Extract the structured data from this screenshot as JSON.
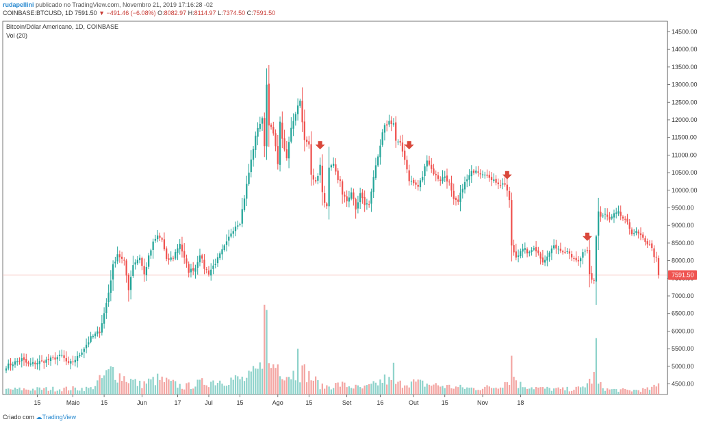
{
  "header": {
    "user": "rudapellini",
    "published": "publicado no TradingView.com, Novembro 21, 2019 17:16:28 -02",
    "symbol": "COINBASE:BTCUSD, 1D",
    "last": "7591.50",
    "change": "▼ −491.46 (−6.08%)",
    "o_label": "O:",
    "o_value": "8082.97",
    "h_label": "H:",
    "h_value": "8114.97",
    "l_label": "L:",
    "l_value": "7374.50",
    "c_label": "C:",
    "c_value": "7591.50"
  },
  "legend": {
    "series_title": "Bitcoin/Dólar Americano, 1D, COINBASE",
    "volume_title": "Vol (20)"
  },
  "footer": {
    "created_by": "Criado com",
    "brand": "TradingView",
    "logo_icon": "tradingview-cloud-icon"
  },
  "colors": {
    "up": "#26a69a",
    "down": "#ef5350",
    "up_volume": "#8fd3cb",
    "down_volume": "#f3a6a3",
    "arrow": "#d9483b",
    "price_line": "#f6c0bd"
  },
  "chart_data": {
    "type": "candlestick",
    "title": "Bitcoin/Dólar Americano, 1D, COINBASE",
    "y_ticks": [
      "14500.00",
      "14000.00",
      "13500.00",
      "13000.00",
      "12500.00",
      "12000.00",
      "11500.00",
      "11000.00",
      "10500.00",
      "10000.00",
      "9500.00",
      "9000.00",
      "8500.00",
      "8000.00",
      "7500.00",
      "7000.00",
      "6500.00",
      "6000.00",
      "5500.00",
      "5000.00",
      "4500.00"
    ],
    "y_range": [
      4200,
      14800
    ],
    "x_ticks": [
      {
        "label": "15",
        "date": "2019-04-15"
      },
      {
        "label": "Maio",
        "date": "2019-05-01"
      },
      {
        "label": "15",
        "date": "2019-05-15"
      },
      {
        "label": "Jun",
        "date": "2019-06-01"
      },
      {
        "label": "17",
        "date": "2019-06-17"
      },
      {
        "label": "Jul",
        "date": "2019-07-01"
      },
      {
        "label": "15",
        "date": "2019-07-15"
      },
      {
        "label": "Ago",
        "date": "2019-08-01"
      },
      {
        "label": "15",
        "date": "2019-08-15"
      },
      {
        "label": "Set",
        "date": "2019-09-01"
      },
      {
        "label": "16",
        "date": "2019-09-16"
      },
      {
        "label": "Out",
        "date": "2019-10-01"
      },
      {
        "label": "15",
        "date": "2019-10-15"
      },
      {
        "label": "Nov",
        "date": "2019-11-01"
      },
      {
        "label": "18",
        "date": "2019-11-18"
      }
    ],
    "start_date": "2019-04-01",
    "last_price_label": "7591.50",
    "close_path": [
      [
        0,
        5000
      ],
      [
        7,
        5200
      ],
      [
        10,
        5050
      ],
      [
        20,
        5200
      ],
      [
        25,
        5300
      ],
      [
        28,
        5050
      ],
      [
        32,
        5250
      ],
      [
        38,
        5800
      ],
      [
        42,
        6000
      ],
      [
        44,
        6500
      ],
      [
        46,
        7100
      ],
      [
        48,
        7850
      ],
      [
        50,
        8200
      ],
      [
        53,
        7950
      ],
      [
        55,
        7200
      ],
      [
        57,
        7900
      ],
      [
        60,
        8100
      ],
      [
        62,
        7600
      ],
      [
        64,
        8100
      ],
      [
        66,
        8500
      ],
      [
        68,
        8700
      ],
      [
        70,
        8600
      ],
      [
        72,
        8000
      ],
      [
        75,
        8100
      ],
      [
        78,
        8500
      ],
      [
        80,
        8050
      ],
      [
        82,
        7700
      ],
      [
        85,
        7800
      ],
      [
        87,
        8200
      ],
      [
        89,
        7800
      ],
      [
        91,
        7650
      ],
      [
        95,
        8050
      ],
      [
        99,
        8500
      ],
      [
        101,
        8800
      ],
      [
        103,
        9000
      ],
      [
        105,
        9100
      ],
      [
        107,
        9800
      ],
      [
        109,
        10500
      ],
      [
        111,
        11200
      ],
      [
        113,
        11800
      ],
      [
        115,
        12000
      ],
      [
        116,
        11300
      ],
      [
        117,
        13000
      ],
      [
        118,
        11900
      ],
      [
        120,
        11600
      ],
      [
        121,
        11200
      ],
      [
        122,
        10800
      ],
      [
        123,
        11900
      ],
      [
        125,
        11100
      ],
      [
        126,
        10900
      ],
      [
        128,
        11800
      ],
      [
        130,
        12200
      ],
      [
        132,
        12600
      ],
      [
        133,
        11900
      ],
      [
        134,
        11400
      ],
      [
        136,
        11300
      ],
      [
        137,
        10500
      ],
      [
        139,
        10200
      ],
      [
        141,
        10700
      ],
      [
        142,
        9900
      ],
      [
        144,
        9500
      ],
      [
        145,
        10600
      ],
      [
        147,
        10700
      ],
      [
        149,
        10300
      ],
      [
        150,
        10300
      ],
      [
        151,
        9850
      ],
      [
        153,
        9700
      ],
      [
        155,
        9950
      ],
      [
        157,
        9450
      ],
      [
        159,
        9900
      ],
      [
        161,
        9600
      ],
      [
        163,
        9600
      ],
      [
        165,
        10400
      ],
      [
        167,
        10900
      ],
      [
        169,
        11600
      ],
      [
        170,
        11800
      ],
      [
        172,
        11950
      ],
      [
        174,
        11900
      ],
      [
        175,
        11400
      ],
      [
        177,
        11300
      ],
      [
        179,
        10900
      ],
      [
        181,
        10300
      ],
      [
        183,
        10200
      ],
      [
        185,
        10100
      ],
      [
        187,
        10400
      ],
      [
        189,
        10900
      ],
      [
        191,
        10600
      ],
      [
        193,
        10400
      ],
      [
        195,
        10300
      ],
      [
        197,
        10400
      ],
      [
        199,
        10200
      ],
      [
        201,
        9700
      ],
      [
        203,
        9650
      ],
      [
        205,
        10100
      ],
      [
        207,
        10300
      ],
      [
        209,
        10500
      ],
      [
        211,
        10600
      ],
      [
        213,
        10500
      ],
      [
        215,
        10500
      ],
      [
        217,
        10300
      ],
      [
        219,
        10350
      ],
      [
        221,
        10150
      ],
      [
        223,
        10200
      ],
      [
        225,
        10000
      ],
      [
        226,
        9700
      ],
      [
        227,
        8400
      ],
      [
        229,
        8100
      ],
      [
        231,
        8300
      ],
      [
        233,
        8300
      ],
      [
        235,
        8200
      ],
      [
        237,
        8400
      ],
      [
        239,
        8200
      ],
      [
        241,
        8000
      ],
      [
        243,
        8100
      ],
      [
        245,
        8350
      ],
      [
        247,
        8400
      ],
      [
        249,
        8300
      ],
      [
        251,
        8300
      ],
      [
        253,
        8250
      ],
      [
        255,
        8000
      ],
      [
        257,
        7950
      ],
      [
        259,
        8200
      ],
      [
        261,
        8250
      ],
      [
        262,
        7600
      ],
      [
        263,
        7450
      ],
      [
        264,
        7450
      ],
      [
        265,
        8700
      ],
      [
        266,
        9400
      ],
      [
        267,
        9250
      ],
      [
        269,
        9300
      ],
      [
        271,
        9150
      ],
      [
        273,
        9300
      ],
      [
        275,
        9350
      ],
      [
        277,
        9200
      ],
      [
        279,
        9050
      ],
      [
        281,
        8800
      ],
      [
        283,
        8800
      ],
      [
        285,
        8700
      ],
      [
        287,
        8500
      ],
      [
        289,
        8500
      ],
      [
        291,
        8150
      ],
      [
        292,
        8050
      ],
      [
        293,
        7591.5
      ]
    ],
    "volume_path": [
      [
        0,
        0.1
      ],
      [
        38,
        0.12
      ],
      [
        44,
        0.35
      ],
      [
        48,
        0.5
      ],
      [
        50,
        0.4
      ],
      [
        60,
        0.2
      ],
      [
        68,
        0.3
      ],
      [
        80,
        0.15
      ],
      [
        90,
        0.25
      ],
      [
        100,
        0.3
      ],
      [
        108,
        0.3
      ],
      [
        114,
        0.5
      ],
      [
        116,
        0.95
      ],
      [
        117,
        0.85
      ],
      [
        118,
        0.55
      ],
      [
        122,
        0.6
      ],
      [
        126,
        0.4
      ],
      [
        134,
        0.45
      ],
      [
        138,
        0.3
      ],
      [
        142,
        0.15
      ],
      [
        150,
        0.2
      ],
      [
        160,
        0.12
      ],
      [
        166,
        0.2
      ],
      [
        170,
        0.3
      ],
      [
        176,
        0.2
      ],
      [
        180,
        0.25
      ],
      [
        190,
        0.2
      ],
      [
        200,
        0.15
      ],
      [
        210,
        0.12
      ],
      [
        220,
        0.15
      ],
      [
        226,
        0.3
      ],
      [
        227,
        0.48
      ],
      [
        230,
        0.2
      ],
      [
        240,
        0.12
      ],
      [
        250,
        0.1
      ],
      [
        258,
        0.12
      ],
      [
        262,
        0.25
      ],
      [
        264,
        0.35
      ],
      [
        265,
        0.6
      ],
      [
        266,
        0.2
      ],
      [
        270,
        0.1
      ],
      [
        280,
        0.08
      ],
      [
        288,
        0.1
      ],
      [
        292,
        0.15
      ],
      [
        293,
        0.2
      ]
    ],
    "volume_axis_max": 6000,
    "volume_base": 4200,
    "notable_volume_bars": [
      {
        "day": 116,
        "value": 6750
      },
      {
        "day": 117,
        "value": 6600
      },
      {
        "day": 265,
        "value": 5800
      },
      {
        "day": 227,
        "value": 5300
      },
      {
        "day": 174,
        "value": 5100
      },
      {
        "day": 131,
        "value": 5500
      }
    ],
    "arrows": [
      {
        "day": 141,
        "price": 11200
      },
      {
        "day": 181,
        "price": 11200
      },
      {
        "day": 225,
        "price": 10350
      },
      {
        "day": 261,
        "price": 8600
      }
    ],
    "candles_count": 294
  }
}
